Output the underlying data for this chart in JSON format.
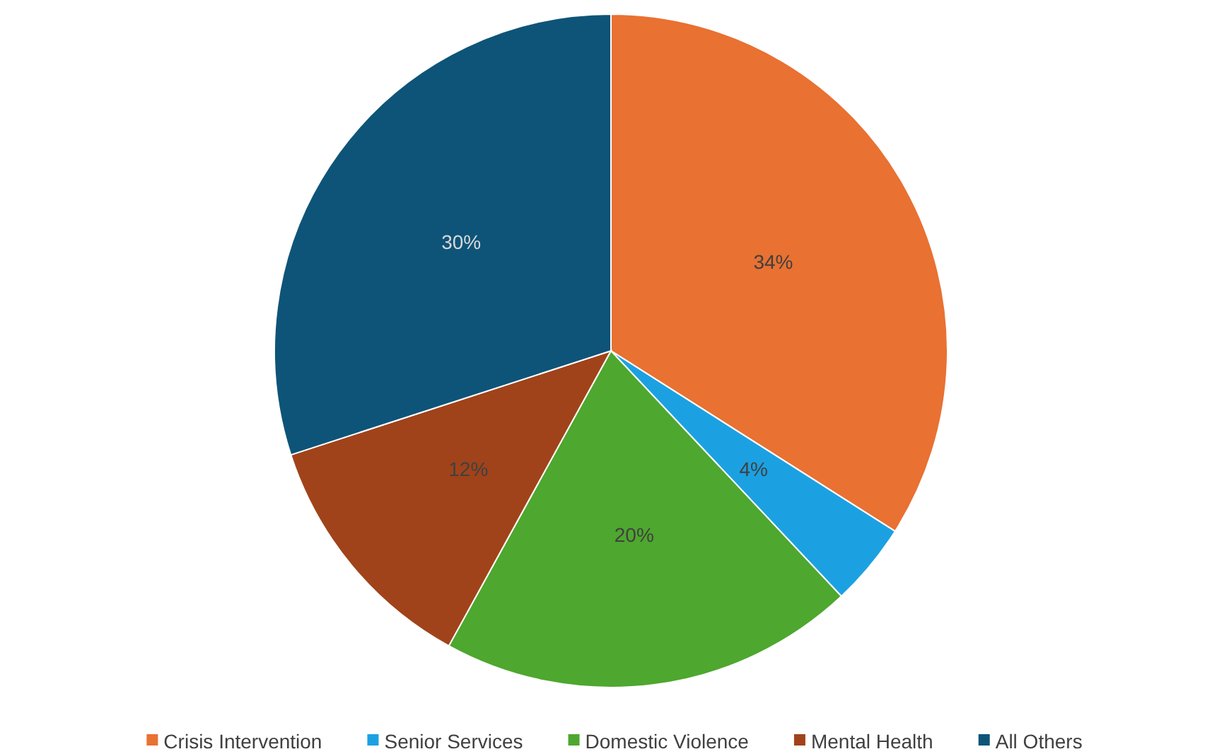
{
  "chart_data": {
    "type": "pie",
    "categories": [
      "Crisis Intervention",
      "Senior Services",
      "Domestic Violence",
      "Mental Health",
      "All Others"
    ],
    "values": [
      34,
      4,
      20,
      12,
      30
    ],
    "colors": [
      "#e97132",
      "#1ba1e2",
      "#4ea72e",
      "#a0431a",
      "#0e5478"
    ],
    "value_labels": [
      "34%",
      "4%",
      "20%",
      "12%",
      "30%"
    ],
    "legend": "bottom"
  }
}
